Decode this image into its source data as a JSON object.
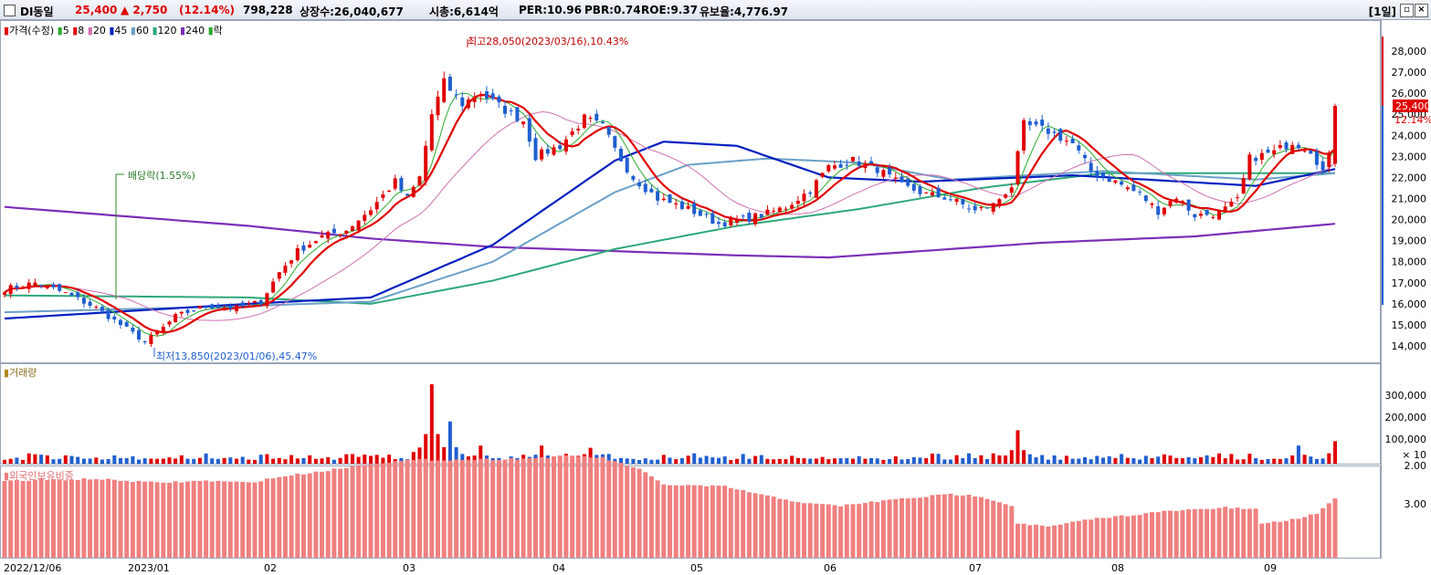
{
  "header": {
    "stock_name": "DI동일",
    "price": "25,400",
    "change": "▲ 2,750",
    "change_pct": "(12.14%)",
    "volume": "798,228",
    "listed_shares": "상장수:26,040,677",
    "market_cap": "시총:6,614억",
    "per": "PER:10.96",
    "pbr": "PBR:0.74",
    "roe": "ROE:9.37",
    "float_rate": "유보율:4,776.97",
    "period": "[1일]"
  },
  "colors": {
    "up": "#e00000",
    "down": "#1f5fd0",
    "ma5": "#2aaa2a",
    "ma8": "#e00000",
    "ma20": "#d070b0",
    "ma45": "#0020c0",
    "ma60": "#6aa0c8",
    "ma120": "#2ea87a",
    "ma240": "#7a2fb8",
    "foreign": "#f08080"
  },
  "legend": {
    "price": "가격(수정)",
    "ma": [
      "5",
      "8",
      "20",
      "45",
      "60",
      "120",
      "240"
    ],
    "fall": "락",
    "volume": "거래량",
    "foreign": "외국인보유비중"
  },
  "annotations": {
    "high": "최고28,050(2023/03/16),10.43%",
    "low": "최저13,850(2023/01/06),45.47%",
    "dividend": "배당락(1.55%)"
  },
  "chart_data": [
    {
      "type": "candlestick",
      "title": "",
      "ylim": [
        13200,
        29000
      ],
      "y_ticks": [
        "28,000",
        "27,000",
        "26,000",
        "25,000",
        "24,000",
        "23,000",
        "22,000",
        "21,000",
        "20,000",
        "19,000",
        "18,000",
        "17,000",
        "16,000",
        "15,000",
        "14,000"
      ],
      "current_price_label": "25,400",
      "current_pct_label": "12.14%",
      "x_labels": [
        "2022/12/06",
        "2023/01",
        "02",
        "03",
        "04",
        "05",
        "06",
        "07",
        "08",
        "09"
      ],
      "close_waypoints": [
        [
          0,
          16700
        ],
        [
          5,
          17000
        ],
        [
          10,
          16500
        ],
        [
          15,
          15800
        ],
        [
          19,
          15000
        ],
        [
          23,
          14200
        ],
        [
          25,
          14600
        ],
        [
          28,
          15400
        ],
        [
          33,
          15900
        ],
        [
          38,
          15800
        ],
        [
          42,
          16100
        ],
        [
          45,
          17500
        ],
        [
          48,
          18500
        ],
        [
          52,
          19200
        ],
        [
          56,
          19500
        ],
        [
          60,
          20500
        ],
        [
          64,
          21800
        ],
        [
          66,
          21000
        ],
        [
          68,
          22000
        ],
        [
          70,
          25000
        ],
        [
          72,
          26500
        ],
        [
          75,
          25500
        ],
        [
          78,
          26000
        ],
        [
          82,
          25200
        ],
        [
          85,
          24700
        ],
        [
          87,
          23000
        ],
        [
          91,
          23500
        ],
        [
          95,
          24800
        ],
        [
          98,
          24400
        ],
        [
          100,
          23300
        ],
        [
          103,
          22000
        ],
        [
          107,
          21000
        ],
        [
          112,
          20500
        ],
        [
          117,
          19800
        ],
        [
          121,
          20000
        ],
        [
          125,
          20300
        ],
        [
          128,
          20600
        ],
        [
          132,
          21400
        ],
        [
          135,
          22500
        ],
        [
          139,
          22800
        ],
        [
          143,
          22400
        ],
        [
          147,
          21600
        ],
        [
          151,
          21200
        ],
        [
          155,
          21000
        ],
        [
          159,
          20400
        ],
        [
          162,
          20700
        ],
        [
          165,
          21600
        ],
        [
          167,
          24500
        ],
        [
          171,
          24200
        ],
        [
          175,
          23600
        ],
        [
          178,
          22300
        ],
        [
          182,
          21800
        ],
        [
          186,
          21200
        ],
        [
          189,
          20400
        ],
        [
          192,
          21100
        ],
        [
          195,
          20200
        ],
        [
          199,
          20300
        ],
        [
          202,
          20900
        ],
        [
          204,
          22900
        ],
        [
          208,
          23200
        ],
        [
          211,
          23700
        ],
        [
          214,
          23300
        ],
        [
          216,
          22300
        ],
        [
          217,
          23000
        ],
        [
          218,
          25400
        ]
      ],
      "ma_anchors": {
        "ma45": [
          [
            0,
            15300
          ],
          [
            40,
            16000
          ],
          [
            60,
            16300
          ],
          [
            80,
            18800
          ],
          [
            100,
            22800
          ],
          [
            108,
            23700
          ],
          [
            120,
            23500
          ],
          [
            135,
            22000
          ],
          [
            150,
            21800
          ],
          [
            175,
            22100
          ],
          [
            205,
            21600
          ],
          [
            218,
            22400
          ]
        ],
        "ma60": [
          [
            0,
            15600
          ],
          [
            40,
            15900
          ],
          [
            60,
            16100
          ],
          [
            80,
            18000
          ],
          [
            100,
            21300
          ],
          [
            112,
            22600
          ],
          [
            125,
            22900
          ],
          [
            140,
            22700
          ],
          [
            155,
            21900
          ],
          [
            180,
            22300
          ],
          [
            205,
            21900
          ],
          [
            218,
            22200
          ]
        ],
        "ma120": [
          [
            0,
            16400
          ],
          [
            40,
            16300
          ],
          [
            60,
            16000
          ],
          [
            80,
            17100
          ],
          [
            100,
            18600
          ],
          [
            120,
            19700
          ],
          [
            140,
            20500
          ],
          [
            160,
            21500
          ],
          [
            180,
            22200
          ],
          [
            205,
            22200
          ],
          [
            218,
            22200
          ]
        ],
        "ma240": [
          [
            0,
            20600
          ],
          [
            40,
            19700
          ],
          [
            60,
            19100
          ],
          [
            80,
            18700
          ],
          [
            100,
            18500
          ],
          [
            120,
            18300
          ],
          [
            135,
            18200
          ],
          [
            150,
            18500
          ],
          [
            170,
            18900
          ],
          [
            195,
            19200
          ],
          [
            218,
            19800
          ]
        ]
      }
    },
    {
      "type": "bar",
      "title": "",
      "y_ticks": [
        "300,000",
        "200,000",
        "100,000"
      ],
      "unit_label": "× 10",
      "ylim": [
        0,
        380000
      ],
      "peaks": [
        [
          70,
          350000
        ],
        [
          73,
          180000
        ],
        [
          78,
          70000
        ],
        [
          88,
          70000
        ],
        [
          96,
          60000
        ],
        [
          166,
          140000
        ],
        [
          212,
          70000
        ]
      ],
      "baseline_high": 25000,
      "baseline_low": 10000
    },
    {
      "type": "bar",
      "title": "",
      "y_ticks": [
        "3.00",
        "2.00"
      ],
      "ylim": [
        1.65,
        3.6
      ],
      "waypoints": [
        [
          0,
          2.4
        ],
        [
          15,
          2.35
        ],
        [
          20,
          2.4
        ],
        [
          25,
          2.45
        ],
        [
          33,
          2.4
        ],
        [
          40,
          2.45
        ],
        [
          45,
          2.3
        ],
        [
          52,
          2.15
        ],
        [
          60,
          1.95
        ],
        [
          68,
          1.85
        ],
        [
          75,
          1.85
        ],
        [
          85,
          1.82
        ],
        [
          93,
          1.75
        ],
        [
          98,
          1.8
        ],
        [
          104,
          2.1
        ],
        [
          108,
          2.5
        ],
        [
          118,
          2.55
        ],
        [
          125,
          2.8
        ],
        [
          132,
          3.0
        ],
        [
          137,
          3.05
        ],
        [
          145,
          2.9
        ],
        [
          155,
          2.75
        ],
        [
          160,
          2.8
        ],
        [
          165,
          3.05
        ],
        [
          166,
          3.5
        ],
        [
          171,
          3.6
        ],
        [
          178,
          3.4
        ],
        [
          190,
          3.2
        ],
        [
          200,
          3.1
        ],
        [
          205,
          3.15
        ],
        [
          206,
          3.5
        ],
        [
          210,
          3.45
        ],
        [
          215,
          3.25
        ],
        [
          218,
          2.85
        ]
      ]
    }
  ]
}
